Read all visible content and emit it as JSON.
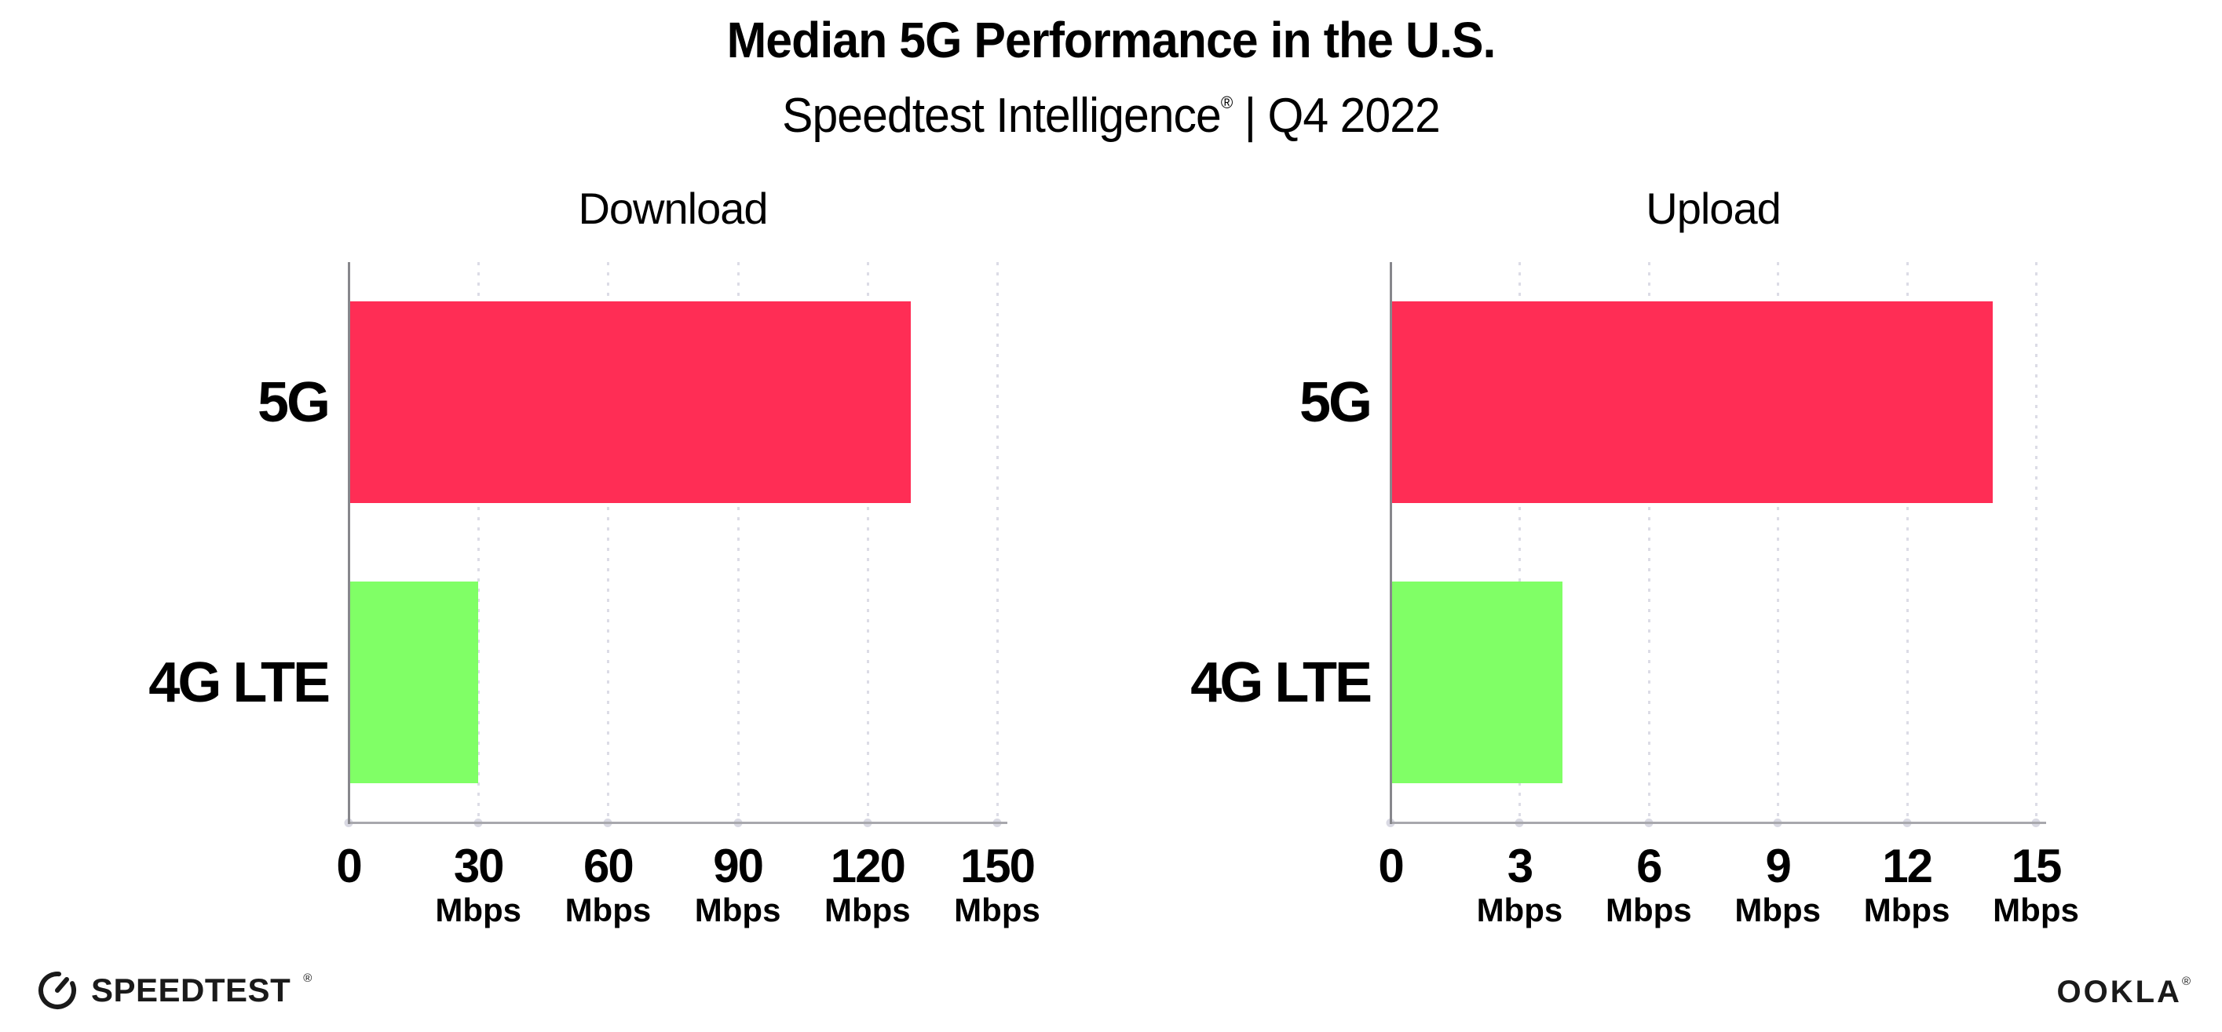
{
  "header": {
    "title": "Median 5G Performance in the U.S.",
    "subtitle_brand": "Speedtest Intelligence",
    "subtitle_mark": "®",
    "subtitle_rest": " | Q4 2022"
  },
  "chart_data": [
    {
      "type": "bar",
      "orientation": "horizontal",
      "title": "Download",
      "categories": [
        "5G",
        "4G LTE"
      ],
      "values": [
        130,
        30
      ],
      "unit": "Mbps",
      "xlim": [
        0,
        150
      ],
      "xticks": [
        0,
        30,
        60,
        90,
        120,
        150
      ],
      "bar_colors": [
        "#ff2d55",
        "#80ff66"
      ],
      "grid": "dotted-vertical-on",
      "legend": "none"
    },
    {
      "type": "bar",
      "orientation": "horizontal",
      "title": "Upload",
      "categories": [
        "5G",
        "4G LTE"
      ],
      "values": [
        14,
        4
      ],
      "unit": "Mbps",
      "xlim": [
        0,
        15
      ],
      "xticks": [
        0,
        3,
        6,
        9,
        12,
        15
      ],
      "bar_colors": [
        "#ff2d55",
        "#80ff66"
      ],
      "grid": "dotted-vertical-on",
      "legend": "none"
    }
  ],
  "colors": {
    "bar_5g": "#ff2d55",
    "bar_4g_lte": "#80ff66",
    "gridline": "#dcdce6",
    "tick_dot": "#d9d9e3",
    "y_axis": "#87878c",
    "x_axis": "#a8a8ad",
    "text": "#000000"
  },
  "footer": {
    "speedtest_label": "SPEEDTEST",
    "speedtest_mark": "®",
    "ookla_label": "OOKLA",
    "ookla_mark": "®"
  }
}
